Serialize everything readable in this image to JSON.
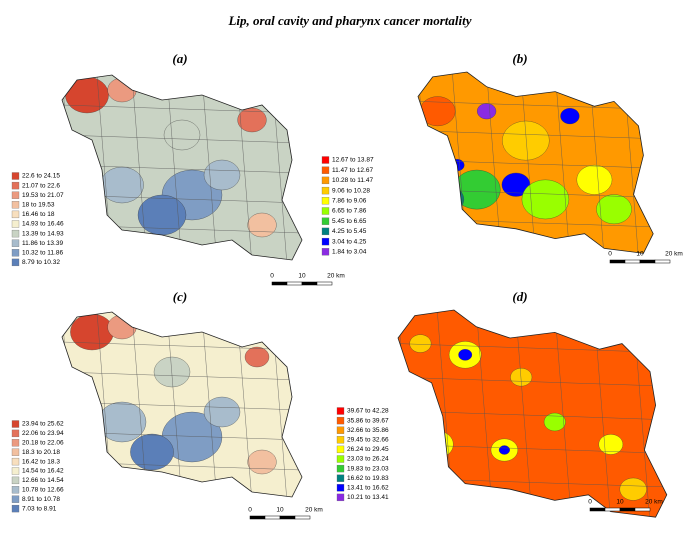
{
  "title": "Lip, oral cavity and pharynx cancer mortality",
  "panels": [
    {
      "label": "(a)",
      "scale": [
        "0",
        "10",
        "20 km"
      ],
      "legend": [
        {
          "label": "22.6 to 24.15",
          "color": "#d6452e"
        },
        {
          "label": "21.07 to 22.6",
          "color": "#e3715a"
        },
        {
          "label": "19.53 to 21.07",
          "color": "#eb9a80"
        },
        {
          "label": "18 to 19.53",
          "color": "#f2c0a0"
        },
        {
          "label": "16.46 to 18",
          "color": "#f8dfbe"
        },
        {
          "label": "14.93 to 16.46",
          "color": "#f5efcf"
        },
        {
          "label": "13.39 to 14.93",
          "color": "#c9d3c4"
        },
        {
          "label": "11.86 to 13.39",
          "color": "#a8bccc"
        },
        {
          "label": "10.32 to 11.86",
          "color": "#7f9dc4"
        },
        {
          "label": "8.79 to 10.32",
          "color": "#5b7fb8"
        }
      ]
    },
    {
      "label": "(b)",
      "scale": [
        "0",
        "10",
        "20 km"
      ],
      "legend": [
        {
          "label": "12.67 to 13.87",
          "color": "#ff0000"
        },
        {
          "label": "11.47 to 12.67",
          "color": "#ff5a00"
        },
        {
          "label": "10.28 to 11.47",
          "color": "#ff9900"
        },
        {
          "label": "9.06 to 10.28",
          "color": "#ffcc00"
        },
        {
          "label": "7.86 to 9.06",
          "color": "#ffff00"
        },
        {
          "label": "6.65 to 7.86",
          "color": "#99ff00"
        },
        {
          "label": "5.45 to 6.65",
          "color": "#33cc33"
        },
        {
          "label": "4.25 to 5.45",
          "color": "#008080"
        },
        {
          "label": "3.04 to 4.25",
          "color": "#0000ff"
        },
        {
          "label": "1.84 to 3.04",
          "color": "#8a2be2"
        }
      ]
    },
    {
      "label": "(c)",
      "scale": [
        "0",
        "10",
        "20 km"
      ],
      "legend": [
        {
          "label": "23.94 to 25.62",
          "color": "#d6452e"
        },
        {
          "label": "22.06 to 23.94",
          "color": "#e3715a"
        },
        {
          "label": "20.18 to 22.06",
          "color": "#eb9a80"
        },
        {
          "label": "18.3 to 20.18",
          "color": "#f2c0a0"
        },
        {
          "label": "16.42 to 18.3",
          "color": "#f8dfbe"
        },
        {
          "label": "14.54 to 16.42",
          "color": "#f5efcf"
        },
        {
          "label": "12.66 to 14.54",
          "color": "#c9d3c4"
        },
        {
          "label": "10.78 to 12.66",
          "color": "#a8bccc"
        },
        {
          "label": "8.91 to 10.78",
          "color": "#7f9dc4"
        },
        {
          "label": "7.03 to 8.91",
          "color": "#5b7fb8"
        }
      ]
    },
    {
      "label": "(d)",
      "scale": [
        "0",
        "10",
        "20 km"
      ],
      "legend": [
        {
          "label": "39.67 to 42.28",
          "color": "#ff0000"
        },
        {
          "label": "35.86 to 39.67",
          "color": "#ff5a00"
        },
        {
          "label": "32.66 to 35.86",
          "color": "#ff9900"
        },
        {
          "label": "29.45 to 32.66",
          "color": "#ffcc00"
        },
        {
          "label": "26.24 to 29.45",
          "color": "#ffff00"
        },
        {
          "label": "23.03 to 26.24",
          "color": "#99ff00"
        },
        {
          "label": "19.83 to 23.03",
          "color": "#33cc33"
        },
        {
          "label": "16.62 to 19.83",
          "color": "#008080"
        },
        {
          "label": "13.41 to 16.62",
          "color": "#0000ff"
        },
        {
          "label": "10.21 to 13.41",
          "color": "#8a2be2"
        }
      ]
    }
  ]
}
